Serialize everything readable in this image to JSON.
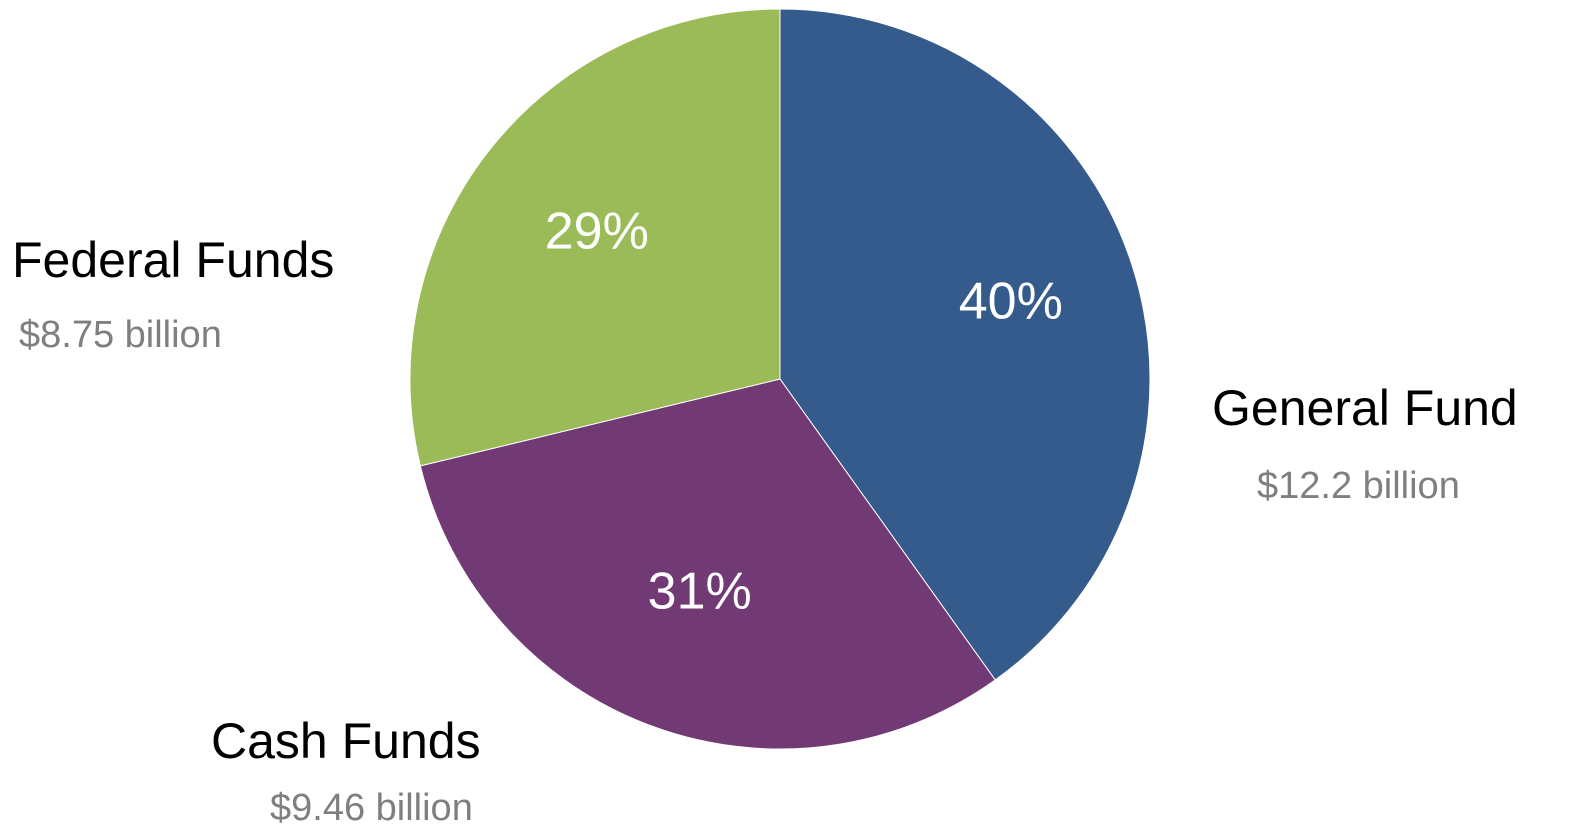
{
  "chart_data": {
    "type": "pie",
    "title": "",
    "start_angle_deg": 0,
    "direction": "clockwise",
    "slices": [
      {
        "category": "General Fund",
        "amount_label": "$12.2 billion",
        "amount_billion": 12.2,
        "percent": 40,
        "percent_label": "40%",
        "color": "#355A8C"
      },
      {
        "category": "Cash Funds",
        "amount_label": "$9.46 billion",
        "amount_billion": 9.46,
        "percent": 31,
        "percent_label": "31%",
        "color": "#723A74"
      },
      {
        "category": "Federal Funds",
        "amount_label": "$8.75 billion",
        "amount_billion": 8.75,
        "percent": 29,
        "percent_label": "29%",
        "color": "#9BBB59"
      }
    ]
  }
}
